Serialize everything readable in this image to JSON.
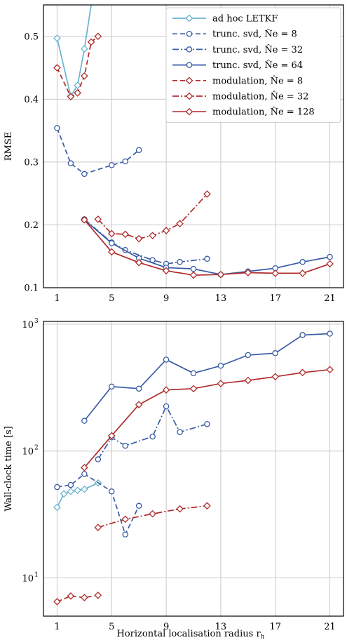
{
  "chart_data": [
    {
      "type": "line",
      "ylabel": "RMSE",
      "xlabel": "",
      "xlim": [
        0,
        22
      ],
      "ylim": [
        0.1,
        0.55
      ],
      "xticks": [
        1,
        5,
        9,
        13,
        17,
        21
      ],
      "xtick_labels": [
        "1",
        "5",
        "9",
        "13",
        "17",
        "21"
      ],
      "yticks": [
        0.1,
        0.2,
        0.3,
        0.4,
        0.5
      ],
      "ytick_labels": [
        "0.1",
        "0.2",
        "0.3",
        "0.4",
        "0.5"
      ],
      "scale": "linear",
      "grid": true,
      "legend": {
        "placement": "top-right",
        "entries": [
          {
            "label": "ad hoc LETKF",
            "color": "#6bb3d0",
            "linestyle": "solid",
            "marker": "diamond"
          },
          {
            "label": "trunc. svd, N̂e = 8",
            "color": "#3a5ca6",
            "linestyle": "dashed",
            "marker": "circle"
          },
          {
            "label": "trunc. svd, N̂e = 32",
            "color": "#3a5ca6",
            "linestyle": "dashdot",
            "marker": "circle"
          },
          {
            "label": "trunc. svd, N̂e = 64",
            "color": "#3a5ca6",
            "linestyle": "solid",
            "marker": "circle"
          },
          {
            "label": "modulation, N̂e = 8",
            "color": "#b02c2c",
            "linestyle": "dashed",
            "marker": "diamond"
          },
          {
            "label": "modulation, N̂e = 32",
            "color": "#b02c2c",
            "linestyle": "dashdot",
            "marker": "diamond"
          },
          {
            "label": "modulation, N̂e = 128",
            "color": "#b02c2c",
            "linestyle": "solid",
            "marker": "diamond"
          }
        ]
      },
      "series": [
        {
          "name": "ad hoc LETKF",
          "color": "#6bb3d0",
          "linestyle": "solid",
          "marker": "diamond",
          "points": [
            [
              1,
              0.497
            ],
            [
              2,
              0.405
            ],
            [
              2.5,
              0.422
            ],
            [
              3,
              0.48
            ],
            [
              4,
              0.62
            ]
          ]
        },
        {
          "name": "trunc. svd, N̂e = 8",
          "color": "#3a5ca6",
          "linestyle": "dashed",
          "marker": "circle",
          "points": [
            [
              1,
              0.354
            ],
            [
              2,
              0.298
            ],
            [
              3,
              0.281
            ],
            [
              5,
              0.295
            ],
            [
              6,
              0.301
            ],
            [
              7,
              0.319
            ]
          ]
        },
        {
          "name": "trunc. svd, N̂e = 32",
          "color": "#3a5ca6",
          "linestyle": "dashdot",
          "marker": "circle",
          "points": [
            [
              3,
              0.209
            ],
            [
              5,
              0.172
            ],
            [
              6,
              0.16
            ],
            [
              8,
              0.144
            ],
            [
              9,
              0.138
            ],
            [
              10,
              0.141
            ],
            [
              12,
              0.146
            ]
          ]
        },
        {
          "name": "trunc. svd, N̂e = 64",
          "color": "#3a5ca6",
          "linestyle": "solid",
          "marker": "circle",
          "points": [
            [
              3,
              0.208
            ],
            [
              5,
              0.171
            ],
            [
              7,
              0.147
            ],
            [
              9,
              0.132
            ],
            [
              11,
              0.13
            ],
            [
              13,
              0.121
            ],
            [
              15,
              0.126
            ],
            [
              17,
              0.131
            ],
            [
              19,
              0.141
            ],
            [
              21,
              0.149
            ]
          ]
        },
        {
          "name": "modulation, N̂e = 8",
          "color": "#b02c2c",
          "linestyle": "dashed",
          "marker": "diamond",
          "points": [
            [
              1,
              0.45
            ],
            [
              2,
              0.404
            ],
            [
              2.5,
              0.41
            ],
            [
              3,
              0.437
            ],
            [
              3.5,
              0.491
            ],
            [
              4,
              0.5
            ]
          ]
        },
        {
          "name": "modulation, N̂e = 32",
          "color": "#b02c2c",
          "linestyle": "dashdot",
          "marker": "diamond",
          "points": [
            [
              4,
              0.209
            ],
            [
              5,
              0.186
            ],
            [
              6,
              0.185
            ],
            [
              7,
              0.178
            ],
            [
              8,
              0.183
            ],
            [
              9,
              0.191
            ],
            [
              10,
              0.202
            ],
            [
              12,
              0.249
            ]
          ]
        },
        {
          "name": "modulation, N̂e = 128",
          "color": "#b02c2c",
          "linestyle": "solid",
          "marker": "diamond",
          "points": [
            [
              3,
              0.208
            ],
            [
              5,
              0.157
            ],
            [
              7,
              0.14
            ],
            [
              9,
              0.127
            ],
            [
              11,
              0.12
            ],
            [
              13,
              0.121
            ],
            [
              15,
              0.124
            ],
            [
              17,
              0.123
            ],
            [
              19,
              0.123
            ],
            [
              21,
              0.138
            ]
          ]
        }
      ]
    },
    {
      "type": "line",
      "ylabel": "Wall-clock time [s]",
      "xlabel": "Horizontal localisation radius r",
      "xlabel_sub": "h",
      "xlim": [
        0,
        22
      ],
      "ylim": [
        5,
        1050
      ],
      "scale": "log",
      "xticks": [
        1,
        5,
        9,
        13,
        17,
        21
      ],
      "xtick_labels": [
        "1",
        "5",
        "9",
        "13",
        "17",
        "21"
      ],
      "yticks": [
        10,
        100,
        1000
      ],
      "ytick_labels": [
        {
          "base": "10",
          "exp": "1"
        },
        {
          "base": "10",
          "exp": "2"
        },
        {
          "base": "10",
          "exp": "3"
        }
      ],
      "grid": true,
      "series": [
        {
          "name": "ad hoc LETKF",
          "color": "#6bb3d0",
          "linestyle": "solid",
          "marker": "diamond",
          "points": [
            [
              1,
              36
            ],
            [
              1.5,
              46
            ],
            [
              2,
              48
            ],
            [
              2.5,
              49
            ],
            [
              3,
              50
            ],
            [
              4,
              56
            ]
          ]
        },
        {
          "name": "trunc. svd, N̂e = 8",
          "color": "#3a5ca6",
          "linestyle": "dashed",
          "marker": "circle",
          "points": [
            [
              1,
              52
            ],
            [
              2,
              54
            ],
            [
              3,
              66
            ],
            [
              5,
              48
            ],
            [
              6,
              22
            ],
            [
              7,
              37
            ]
          ]
        },
        {
          "name": "trunc. svd, N̂e = 32",
          "color": "#3a5ca6",
          "linestyle": "dashdot",
          "marker": "circle",
          "points": [
            [
              4,
              86
            ],
            [
              5,
              128
            ],
            [
              6,
              110
            ],
            [
              8,
              130
            ],
            [
              9,
              225
            ],
            [
              10,
              141
            ],
            [
              12,
              163
            ]
          ]
        },
        {
          "name": "trunc. svd, N̂e = 64",
          "color": "#3a5ca6",
          "linestyle": "solid",
          "marker": "circle",
          "points": [
            [
              3,
              173
            ],
            [
              5,
              322
            ],
            [
              7,
              310
            ],
            [
              9,
              525
            ],
            [
              11,
              410
            ],
            [
              13,
              470
            ],
            [
              15,
              570
            ],
            [
              17,
              590
            ],
            [
              19,
              820
            ],
            [
              21,
              840
            ]
          ]
        },
        {
          "name": "modulation, N̂e = 8",
          "color": "#b02c2c",
          "linestyle": "dashed",
          "marker": "diamond",
          "points": [
            [
              1,
              6.5
            ],
            [
              2,
              7.2
            ],
            [
              3,
              7.0
            ],
            [
              4,
              7.3
            ]
          ]
        },
        {
          "name": "modulation, N̂e = 32",
          "color": "#b02c2c",
          "linestyle": "dashdot",
          "marker": "diamond",
          "points": [
            [
              4,
              25
            ],
            [
              6,
              29
            ],
            [
              8,
              32
            ],
            [
              10,
              35
            ],
            [
              12,
              37
            ]
          ]
        },
        {
          "name": "modulation, N̂e = 128",
          "color": "#b02c2c",
          "linestyle": "solid",
          "marker": "diamond",
          "points": [
            [
              3,
              74
            ],
            [
              5,
              132
            ],
            [
              7,
              232
            ],
            [
              9,
              303
            ],
            [
              11,
              310
            ],
            [
              13,
              340
            ],
            [
              15,
              360
            ],
            [
              17,
              385
            ],
            [
              19,
              415
            ],
            [
              21,
              438
            ]
          ]
        }
      ]
    }
  ]
}
